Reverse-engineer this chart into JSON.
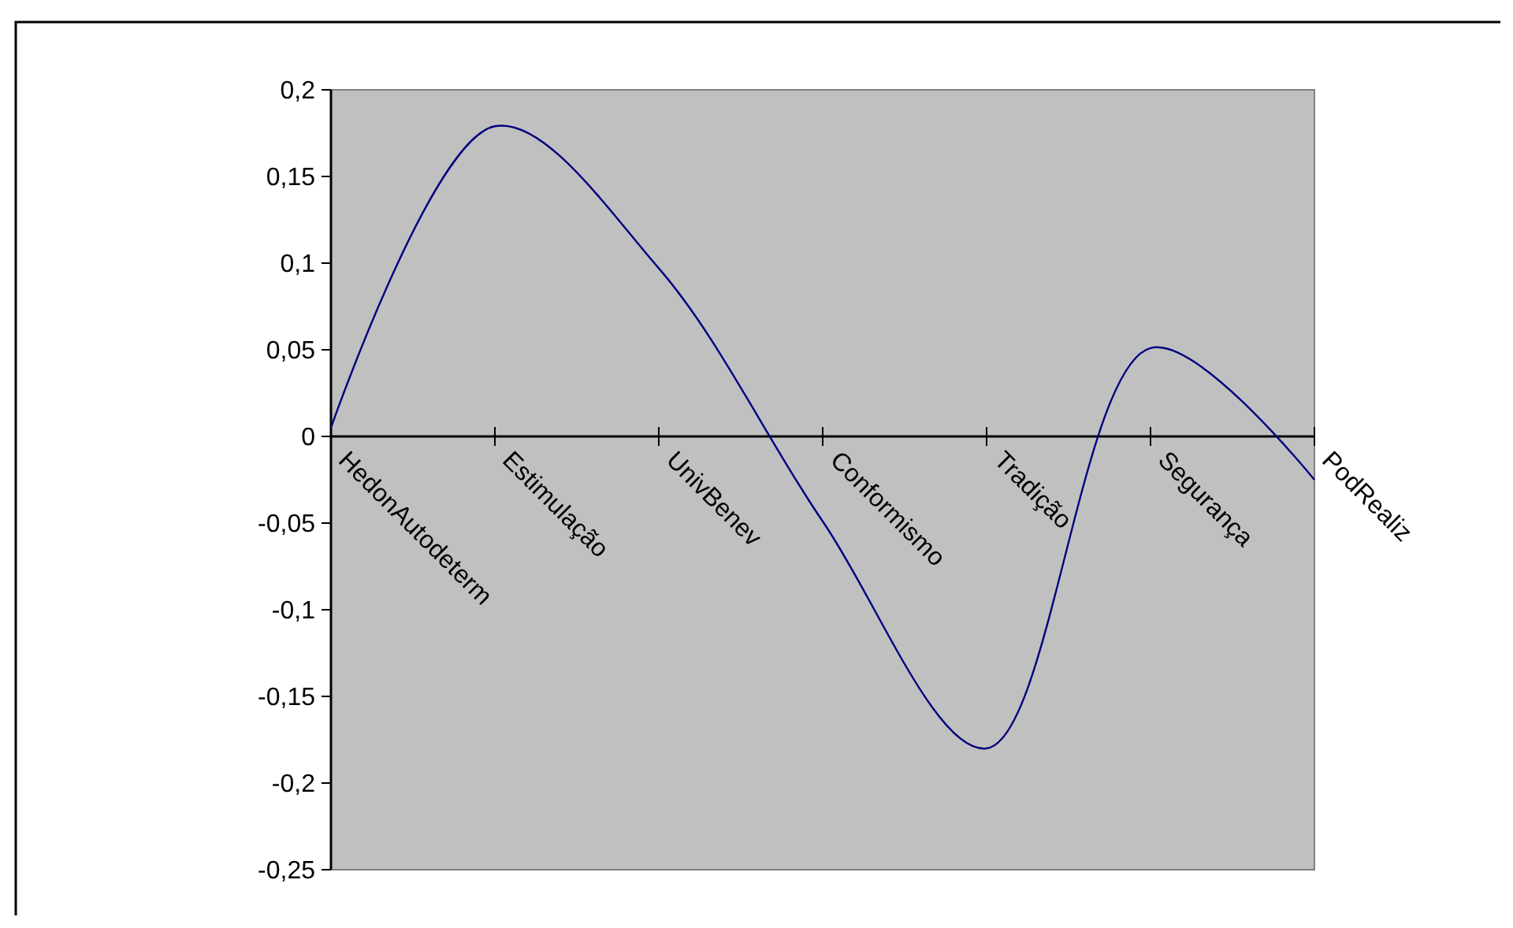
{
  "chart_data": {
    "type": "line",
    "categories": [
      "HedonAutodeterm",
      "Estimulação",
      "UnivBenev",
      "Conformismo",
      "Tradição",
      "Segurança",
      "PodRealiz"
    ],
    "series": [
      {
        "color": "#000080",
        "values": [
          0.005,
          0.179,
          0.097,
          -0.049,
          -0.18,
          0.051,
          -0.025
        ]
      }
    ],
    "ylim": [
      -0.25,
      0.2
    ],
    "yticks": [
      {
        "value": 0.2,
        "label": "0,2"
      },
      {
        "value": 0.15,
        "label": "0,15"
      },
      {
        "value": 0.1,
        "label": "0,1"
      },
      {
        "value": 0.05,
        "label": "0,05"
      },
      {
        "value": 0,
        "label": "0"
      },
      {
        "value": -0.05,
        "label": "-0,05"
      },
      {
        "value": -0.1,
        "label": "-0,1"
      },
      {
        "value": -0.15,
        "label": "-0,15"
      },
      {
        "value": -0.2,
        "label": "-0,2"
      },
      {
        "value": -0.25,
        "label": "-0,25"
      }
    ],
    "marker": "none",
    "line_style": "solid"
  }
}
